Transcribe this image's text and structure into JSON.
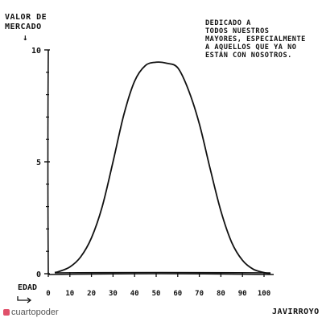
{
  "chart_data": {
    "type": "line",
    "ylabel_line1": "VALOR DE",
    "ylabel_line2": "MERCADO",
    "xlabel": "EDAD",
    "xlim": [
      0,
      100
    ],
    "ylim": [
      0,
      10
    ],
    "x_ticks": [
      0,
      10,
      20,
      30,
      40,
      50,
      60,
      70,
      80,
      90,
      100
    ],
    "y_tick_labels": [
      {
        "value": 0,
        "label": "0"
      },
      {
        "value": 5,
        "label": "5"
      },
      {
        "value": 10,
        "label": "10"
      }
    ],
    "y_minor_ticks": [
      1,
      2,
      3,
      4,
      6,
      7,
      8,
      9
    ],
    "series": [
      {
        "points": [
          [
            3,
            0.05
          ],
          [
            5,
            0.1
          ],
          [
            10,
            0.3
          ],
          [
            15,
            0.75
          ],
          [
            20,
            1.6
          ],
          [
            25,
            3.0
          ],
          [
            30,
            5.0
          ],
          [
            35,
            7.1
          ],
          [
            40,
            8.6
          ],
          [
            45,
            9.3
          ],
          [
            50,
            9.45
          ],
          [
            55,
            9.4
          ],
          [
            60,
            9.2
          ],
          [
            65,
            8.2
          ],
          [
            70,
            6.7
          ],
          [
            75,
            4.7
          ],
          [
            80,
            2.8
          ],
          [
            85,
            1.4
          ],
          [
            90,
            0.6
          ],
          [
            95,
            0.2
          ],
          [
            100,
            0.05
          ],
          [
            103,
            0.0
          ]
        ]
      }
    ],
    "baseline_line": [
      [
        3,
        0.0
      ],
      [
        103,
        0.0
      ]
    ]
  },
  "dedication": "DEDICADO A\nTODOS NUESTROS\nMAYORES, ESPECIALMENTE\nA AQUELLOS QUE YA NO\nESTÁN CON NOSOTROS.",
  "author": "JAVIRROYO",
  "brand": "cuartopoder",
  "colors": {
    "ink": "#111111",
    "brand": "#e0506a"
  }
}
